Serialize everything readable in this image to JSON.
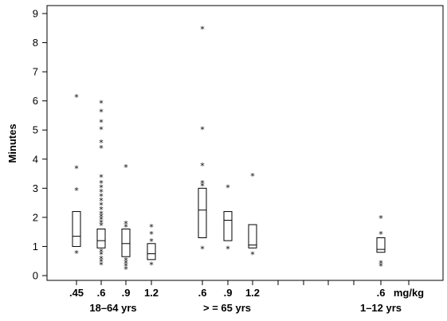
{
  "chart_data": {
    "type": "boxplot",
    "ylabel": "Minutes",
    "ylim": [
      0,
      9
    ],
    "yticks": [
      0,
      1,
      2,
      3,
      4,
      5,
      6,
      7,
      8,
      9
    ],
    "x_unit_label": "mg/kg",
    "groups": [
      {
        "label": "18–64 yrs",
        "categories": [
          ".45",
          ".6",
          ".9",
          "1.2"
        ]
      },
      {
        "label": "> = 65 yrs",
        "categories": [
          ".6",
          ".9",
          "1.2"
        ]
      },
      {
        "label": "1–12 yrs",
        "categories": [
          ".6"
        ]
      }
    ],
    "boxes": [
      {
        "group": "18–64 yrs",
        "dose": ".45",
        "q1": 1.0,
        "median": 1.35,
        "q3": 2.2,
        "outliers": [
          0.8,
          2.95,
          3.7,
          6.15
        ]
      },
      {
        "group": "18–64 yrs",
        "dose": ".6",
        "q1": 0.95,
        "median": 1.2,
        "q3": 1.6,
        "outliers": [
          0.4,
          0.5,
          0.6,
          0.75,
          0.85,
          1.75,
          1.85,
          1.95,
          2.05,
          2.15,
          2.3,
          2.45,
          2.6,
          2.75,
          2.9,
          3.05,
          3.2,
          3.4,
          4.4,
          4.6,
          5.05,
          5.3,
          5.65,
          5.95
        ]
      },
      {
        "group": "18–64 yrs",
        "dose": ".9",
        "q1": 0.65,
        "median": 1.1,
        "q3": 1.6,
        "outliers": [
          0.25,
          0.35,
          0.45,
          0.55,
          1.7,
          1.8,
          3.75
        ]
      },
      {
        "group": "18–64 yrs",
        "dose": "1.2",
        "q1": 0.55,
        "median": 0.75,
        "q3": 1.1,
        "outliers": [
          0.4,
          1.2,
          1.45,
          1.7
        ]
      },
      {
        "group": "> = 65 yrs",
        "dose": ".6",
        "q1": 1.3,
        "median": 2.25,
        "q3": 3.0,
        "outliers": [
          0.95,
          3.1,
          3.2,
          3.8,
          5.05,
          8.5
        ]
      },
      {
        "group": "> = 65 yrs",
        "dose": ".9",
        "q1": 1.2,
        "median": 1.9,
        "q3": 2.2,
        "outliers": [
          0.95,
          3.05
        ]
      },
      {
        "group": "> = 65 yrs",
        "dose": "1.2",
        "q1": 0.95,
        "median": 1.05,
        "q3": 1.75,
        "outliers": [
          0.75,
          3.45
        ]
      },
      {
        "group": "1–12 yrs",
        "dose": ".6",
        "q1": 0.8,
        "median": 0.9,
        "q3": 1.3,
        "outliers": [
          0.35,
          0.45,
          1.45,
          2.0
        ]
      }
    ]
  }
}
